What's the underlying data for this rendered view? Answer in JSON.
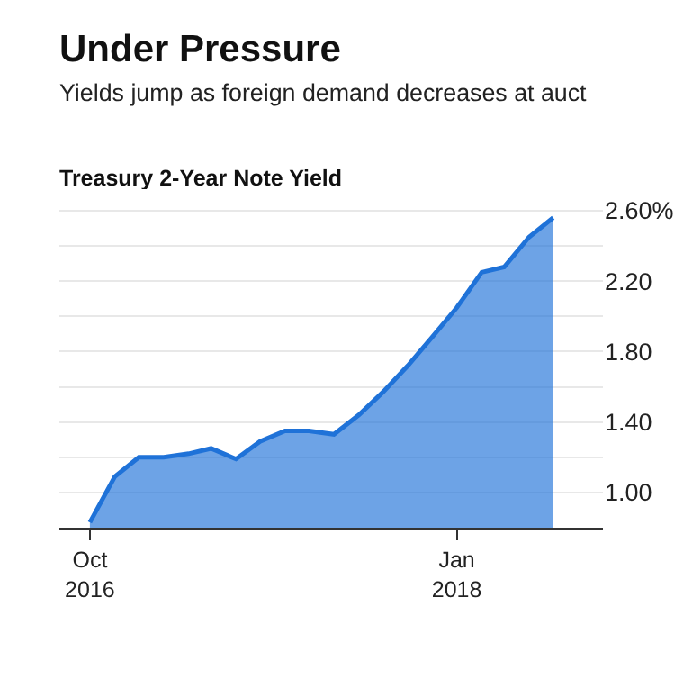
{
  "chart_data": {
    "type": "area",
    "title": "Under Pressure",
    "subtitle": "Yields jump as foreign demand decreases at auct",
    "annotations": [
      "Treasury 2-Year Note Yield"
    ],
    "x": [
      "2016-10",
      "2016-11",
      "2016-12",
      "2017-01",
      "2017-02",
      "2017-03",
      "2017-04",
      "2017-05",
      "2017-06",
      "2017-07",
      "2017-08",
      "2017-09",
      "2017-10",
      "2017-11",
      "2017-12",
      "2018-01",
      "2018-02",
      "2018-03",
      "2018-04",
      "2018-05"
    ],
    "series": [
      {
        "color": "#1f72d8",
        "values": [
          0.83,
          1.09,
          1.2,
          1.2,
          1.22,
          1.25,
          1.19,
          1.29,
          1.35,
          1.35,
          1.33,
          1.44,
          1.57,
          1.72,
          1.88,
          2.05,
          2.25,
          2.28,
          2.45,
          2.56
        ]
      }
    ],
    "xlim": [
      "2016-08-24",
      "2018-07-02"
    ],
    "xticks": [
      {
        "value": "2016-10",
        "label": "Oct\n2016"
      },
      {
        "value": "2018-01",
        "label": "Jan\n2018"
      }
    ],
    "ylim": [
      0.8,
      2.62
    ],
    "yticks": [
      {
        "value": 1.0,
        "label": "1.00"
      },
      {
        "value": 1.2,
        "label": null
      },
      {
        "value": 1.4,
        "label": "1.40"
      },
      {
        "value": 1.6,
        "label": null
      },
      {
        "value": 1.8,
        "label": "1.80"
      },
      {
        "value": 2.0,
        "label": null
      },
      {
        "value": 2.2,
        "label": "2.20"
      },
      {
        "value": 2.4,
        "label": null
      },
      {
        "value": 2.6,
        "label": "2.60%"
      }
    ],
    "grid": "y",
    "marker": "none",
    "line_style": "solid"
  }
}
